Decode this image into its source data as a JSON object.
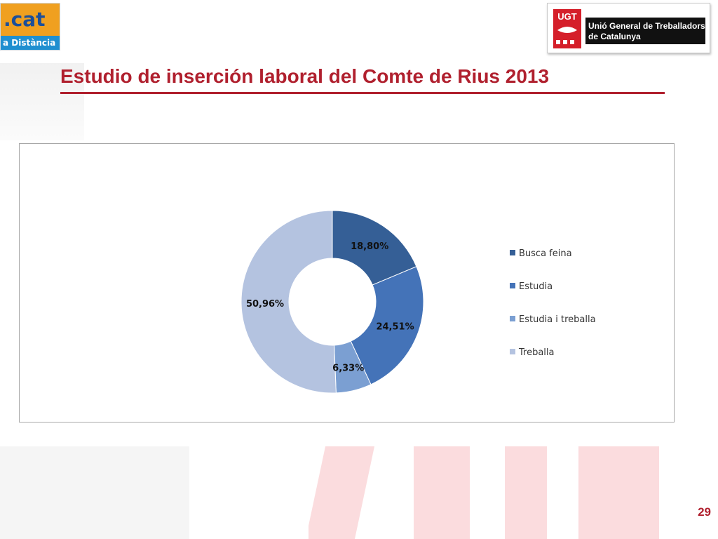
{
  "slide": {
    "title": "Estudio de inserción laboral del Comte de Rius 2013",
    "page_number": "29"
  },
  "logos": {
    "left": {
      "top_text": ".cat",
      "bottom_text": "a Distància"
    },
    "right": {
      "mark_text": "UGT",
      "name_line1": "Unió General de Treballadors",
      "name_line2": "de Catalunya"
    }
  },
  "colors": {
    "title": "#b0202e",
    "busca_feina": "#355f96",
    "estudia": "#4473b8",
    "estudia_i_treballa": "#7b9fd2",
    "treballa": "#b4c3e0"
  },
  "chart_data": {
    "type": "pie",
    "variant": "doughnut",
    "categories": [
      "Busca feina",
      "Estudia",
      "Estudia i treballa",
      "Treballa"
    ],
    "values": [
      18.8,
      24.51,
      6.33,
      50.96
    ],
    "labels": [
      "18,80%",
      "24,51%",
      "6,33%",
      "50,96%"
    ],
    "colors": [
      "#355f96",
      "#4473b8",
      "#7b9fd2",
      "#b4c3e0"
    ],
    "legend_position": "right"
  }
}
